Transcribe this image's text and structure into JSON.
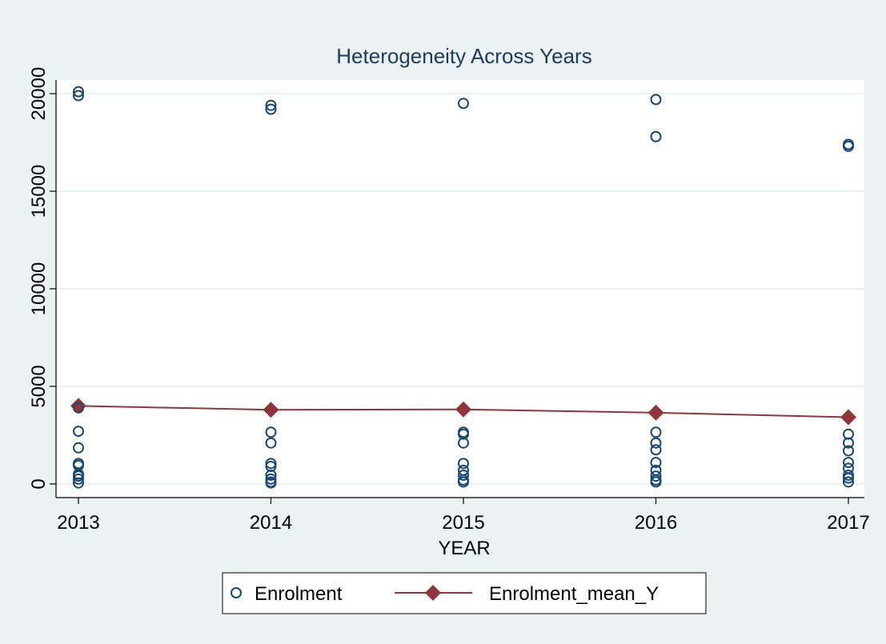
{
  "chart_data": {
    "type": "scatter",
    "title": "Heterogeneity Across Years",
    "xlabel": "YEAR",
    "ylabel": "",
    "x_ticks": [
      "2013",
      "2014",
      "2015",
      "2016",
      "2017"
    ],
    "y_ticks": [
      "0",
      "5000",
      "10000",
      "15000",
      "20000"
    ],
    "xlim": [
      2013,
      2017
    ],
    "ylim": [
      -700,
      20700
    ],
    "grid": true,
    "legend_position": "bottom",
    "series": [
      {
        "name": "Enrolment",
        "marker": "hollow-circle",
        "color": "#1a476f",
        "points": [
          [
            2013,
            20100
          ],
          [
            2013,
            19900
          ],
          [
            2013,
            3900
          ],
          [
            2013,
            2700
          ],
          [
            2013,
            1850
          ],
          [
            2013,
            1050
          ],
          [
            2013,
            950
          ],
          [
            2013,
            500
          ],
          [
            2013,
            400
          ],
          [
            2013,
            250
          ],
          [
            2013,
            50
          ],
          [
            2014,
            19400
          ],
          [
            2014,
            19200
          ],
          [
            2014,
            2650
          ],
          [
            2014,
            2100
          ],
          [
            2014,
            1050
          ],
          [
            2014,
            900
          ],
          [
            2014,
            450
          ],
          [
            2014,
            250
          ],
          [
            2014,
            100
          ],
          [
            2014,
            50
          ],
          [
            2015,
            19500
          ],
          [
            2015,
            2650
          ],
          [
            2015,
            2550
          ],
          [
            2015,
            2100
          ],
          [
            2015,
            1050
          ],
          [
            2015,
            700
          ],
          [
            2015,
            450
          ],
          [
            2015,
            200
          ],
          [
            2015,
            100
          ],
          [
            2016,
            19700
          ],
          [
            2016,
            17800
          ],
          [
            2016,
            2650
          ],
          [
            2016,
            2100
          ],
          [
            2016,
            1750
          ],
          [
            2016,
            1100
          ],
          [
            2016,
            700
          ],
          [
            2016,
            400
          ],
          [
            2016,
            200
          ],
          [
            2016,
            100
          ],
          [
            2017,
            17400
          ],
          [
            2017,
            17300
          ],
          [
            2017,
            2550
          ],
          [
            2017,
            2100
          ],
          [
            2017,
            1700
          ],
          [
            2017,
            1100
          ],
          [
            2017,
            800
          ],
          [
            2017,
            450
          ],
          [
            2017,
            300
          ],
          [
            2017,
            100
          ]
        ]
      },
      {
        "name": "Enrolment_mean_Y",
        "marker": "diamond-line",
        "color": "#90353b",
        "points": [
          [
            2013,
            4000
          ],
          [
            2014,
            3800
          ],
          [
            2015,
            3820
          ],
          [
            2016,
            3650
          ],
          [
            2017,
            3420
          ]
        ]
      }
    ]
  },
  "colors": {
    "background": "#eaf2f3",
    "plot_area": "#ffffff",
    "title": "#1e3a5f",
    "enrolment": "#1a476f",
    "mean": "#90353b"
  }
}
